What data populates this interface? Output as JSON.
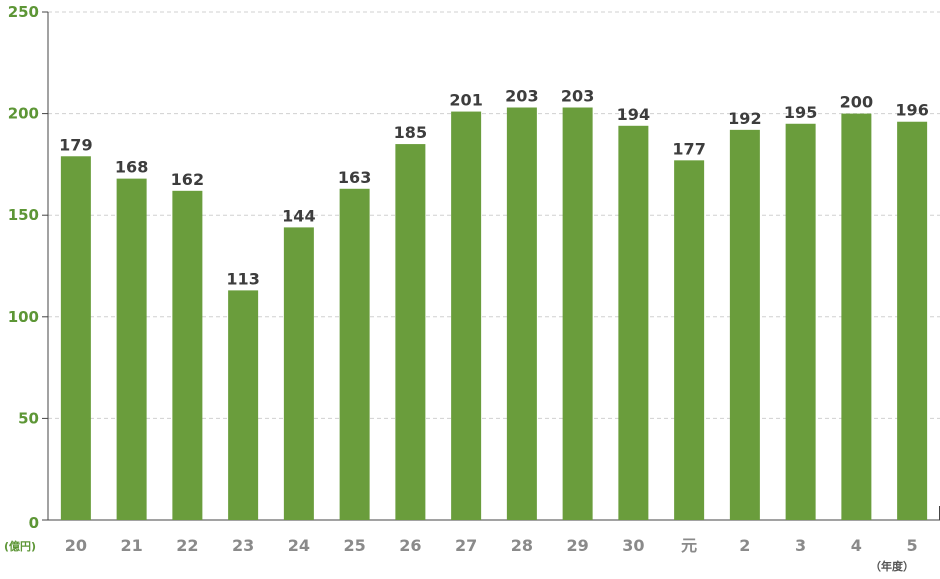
{
  "chart_data": {
    "type": "bar",
    "categories": [
      "20",
      "21",
      "22",
      "23",
      "24",
      "25",
      "26",
      "27",
      "28",
      "29",
      "30",
      "元",
      "2",
      "3",
      "4",
      "5"
    ],
    "values": [
      179,
      168,
      162,
      113,
      144,
      163,
      185,
      201,
      203,
      203,
      194,
      177,
      192,
      195,
      200,
      196
    ],
    "data_labels": [
      "179",
      "168",
      "162",
      "113",
      "144",
      "163",
      "185",
      "201",
      "203",
      "203",
      "194",
      "177",
      "192",
      "195",
      "200",
      "196"
    ],
    "ylim": [
      0,
      250
    ],
    "yticks": [
      "0",
      "50",
      "100",
      "150",
      "200",
      "250"
    ],
    "y_unit": "(億円)",
    "x_unit": "（年度）",
    "grid": true,
    "colors": {
      "bar": "#6a9d3c",
      "ytick": "#5d9636",
      "xtick": "#8a8a8a",
      "value_label": "#3d3d3d",
      "y_unit": "#5d9636",
      "x_unit": "#555555",
      "grid": "#d0d0d0",
      "axis": "#444444"
    }
  }
}
